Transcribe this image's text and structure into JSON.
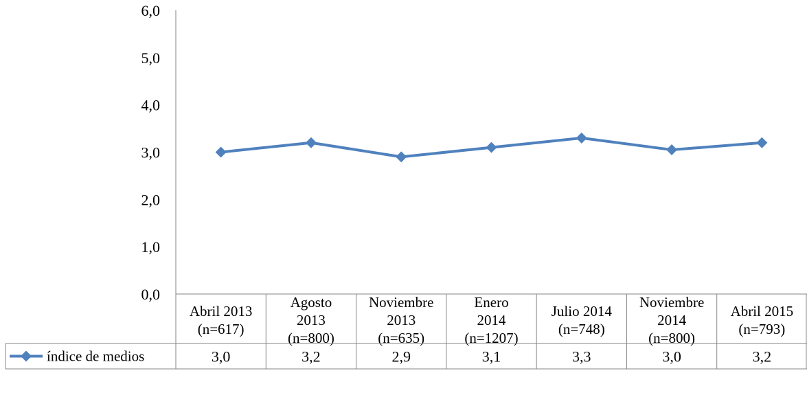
{
  "chart_data": {
    "type": "line",
    "categories": [
      [
        "Abril 2013",
        "(n=617)"
      ],
      [
        "Agosto",
        "2013",
        "(n=800)"
      ],
      [
        "Noviembre",
        "2013",
        "(n=635)"
      ],
      [
        "Enero",
        "2014",
        "(n=1207)"
      ],
      [
        "Julio 2014",
        "(n=748)"
      ],
      [
        "Noviembre",
        "2014",
        "(n=800)"
      ],
      [
        "Abril 2015",
        "(n=793)"
      ]
    ],
    "series": [
      {
        "name": "índice de medios",
        "values": [
          3.0,
          3.2,
          2.9,
          3.1,
          3.3,
          3.05,
          3.2
        ],
        "labels": [
          "3,0",
          "3,2",
          "2,9",
          "3,1",
          "3,3",
          "3,0",
          "3,2"
        ],
        "color": "#4f81bd"
      }
    ],
    "ylim": [
      0,
      6
    ],
    "yticks": [
      "0,0",
      "1,0",
      "2,0",
      "3,0",
      "4,0",
      "5,0",
      "6,0"
    ],
    "grid": false,
    "legend": "data-table"
  }
}
